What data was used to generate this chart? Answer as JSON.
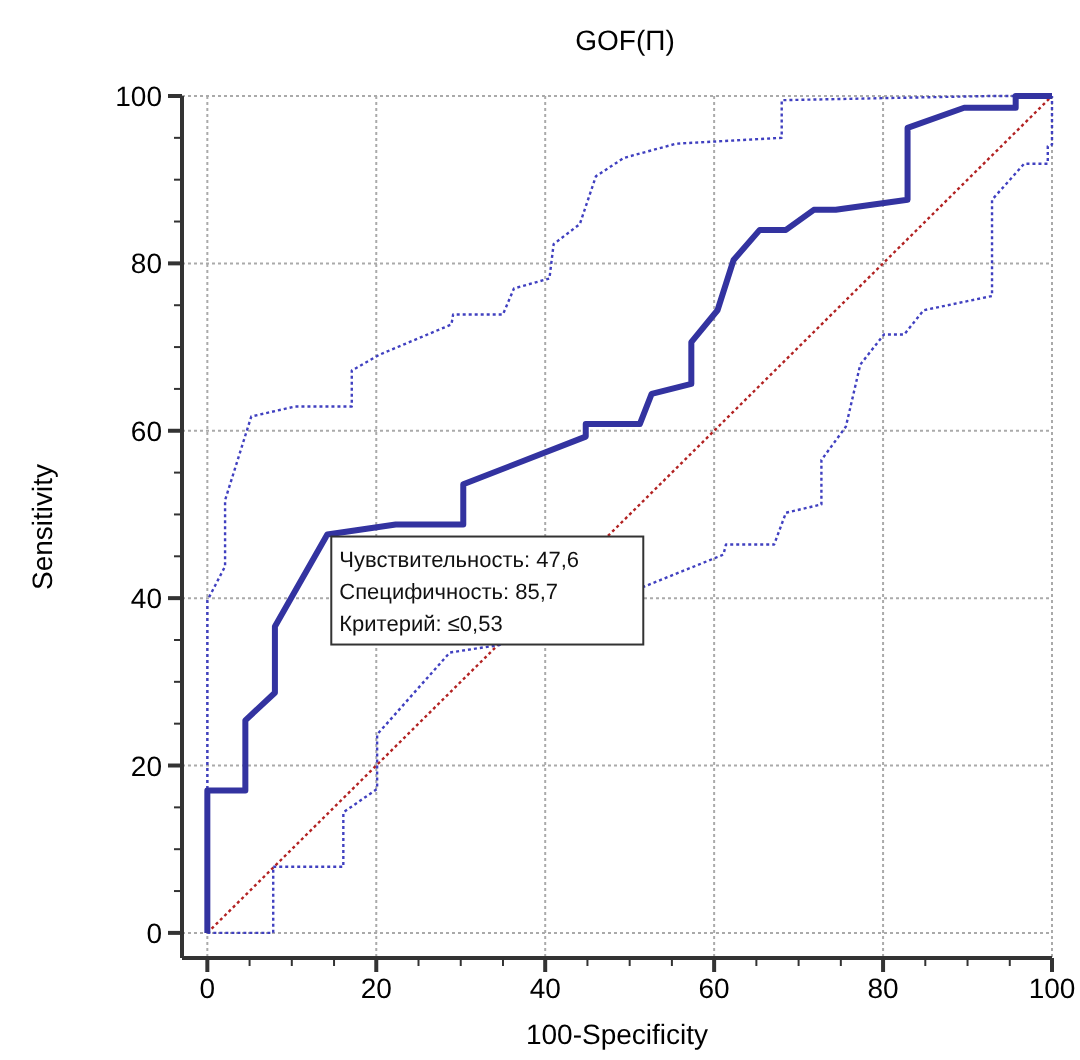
{
  "chart_data": {
    "type": "line",
    "title": "GOF(П)",
    "xlabel": "100-Specificity",
    "ylabel": "Sensitivity",
    "xlim": [
      -3,
      100
    ],
    "ylim": [
      -3,
      100
    ],
    "xticks": [
      0,
      {
        "value": 5,
        "label": null
      },
      {
        "value": 10,
        "label": null
      },
      {
        "value": 15,
        "label": null
      },
      20,
      {
        "value": 25,
        "label": null
      },
      {
        "value": 30,
        "label": null
      },
      {
        "value": 35,
        "label": null
      },
      40,
      {
        "value": 45,
        "label": null
      },
      {
        "value": 50,
        "label": null
      },
      {
        "value": 55,
        "label": null
      },
      60,
      {
        "value": 65,
        "label": null
      },
      {
        "value": 70,
        "label": null
      },
      {
        "value": 75,
        "label": null
      },
      80,
      {
        "value": 85,
        "label": null
      },
      {
        "value": 90,
        "label": null
      },
      {
        "value": 95,
        "label": null
      },
      100
    ],
    "yticks": [
      0,
      {
        "value": 5,
        "label": null
      },
      {
        "value": 10,
        "label": null
      },
      {
        "value": 15,
        "label": null
      },
      20,
      {
        "value": 25,
        "label": null
      },
      {
        "value": 30,
        "label": null
      },
      {
        "value": 35,
        "label": null
      },
      40,
      {
        "value": 45,
        "label": null
      },
      {
        "value": 50,
        "label": null
      },
      {
        "value": 55,
        "label": null
      },
      60,
      {
        "value": 65,
        "label": null
      },
      {
        "value": 70,
        "label": null
      },
      {
        "value": 75,
        "label": null
      },
      80,
      {
        "value": 85,
        "label": null
      },
      {
        "value": 90,
        "label": null
      },
      {
        "value": 95,
        "label": null
      },
      100
    ],
    "grid": true,
    "marker": "none",
    "series": [
      {
        "color": "#b22222",
        "line_style": "dotted",
        "x": [
          0,
          100
        ],
        "values": [
          0,
          100
        ]
      },
      {
        "color": "#4040c0",
        "line_style": "dotted",
        "x": [
          0,
          0,
          2.1,
          2.1,
          5.2,
          10.4,
          17.1,
          17.1,
          20.4,
          28.9,
          29.1,
          35,
          36.3,
          40.5,
          41,
          44.1,
          46,
          49.3,
          55.5,
          68,
          68,
          92.7,
          100
        ],
        "values": [
          0,
          39.7,
          43.8,
          51.7,
          61.7,
          62.9,
          62.9,
          67.2,
          69.1,
          72.7,
          73.9,
          73.9,
          77,
          78.2,
          82.3,
          84.7,
          90.4,
          92.6,
          94.3,
          95,
          99.5,
          100,
          100
        ]
      },
      {
        "color": "#4040c0",
        "line_style": "dotted",
        "x": [
          0,
          7.8,
          7.8,
          16.1,
          16.1,
          20.1,
          20.1,
          28.7,
          34.6,
          61.1,
          61.4,
          67.1,
          68.5,
          72.7,
          72.7,
          75.6,
          77.3,
          80.1,
          82.5,
          84.8,
          92.9,
          92.9,
          96.7,
          99.5,
          99.5,
          100,
          100
        ],
        "values": [
          0,
          0,
          7.9,
          7.9,
          14.4,
          17.2,
          23.7,
          33.5,
          34.4,
          45.2,
          46.4,
          46.4,
          50.2,
          51.2,
          56.5,
          60.5,
          67.9,
          71.5,
          71.5,
          74.4,
          76.1,
          87.6,
          91.9,
          91.9,
          94,
          94.2,
          100
        ]
      },
      {
        "color": "#3333a0",
        "line_style": "solid",
        "x": [
          0,
          0,
          4.5,
          4.5,
          8,
          8,
          14.2,
          22.3,
          30.3,
          30.3,
          44.8,
          44.8,
          51.2,
          52.6,
          57.3,
          57.3,
          60.4,
          62.3,
          65.4,
          68.5,
          71.8,
          74.4,
          82.9,
          82.9,
          89.6,
          95.7,
          95.7,
          100
        ],
        "values": [
          0,
          17,
          17,
          25.4,
          28.7,
          36.6,
          47.6,
          48.8,
          48.8,
          53.6,
          59.3,
          60.8,
          60.8,
          64.4,
          65.6,
          70.6,
          74.4,
          80.4,
          84,
          84,
          86.4,
          86.4,
          87.6,
          96.2,
          98.6,
          98.6,
          100,
          100
        ]
      }
    ],
    "annotations": [
      {
        "text": "Чувствительность: 47,6\nСпецифичность: 85,7\nКритерий: ≤0,53",
        "x": 14.2,
        "y": 47.6
      }
    ]
  }
}
